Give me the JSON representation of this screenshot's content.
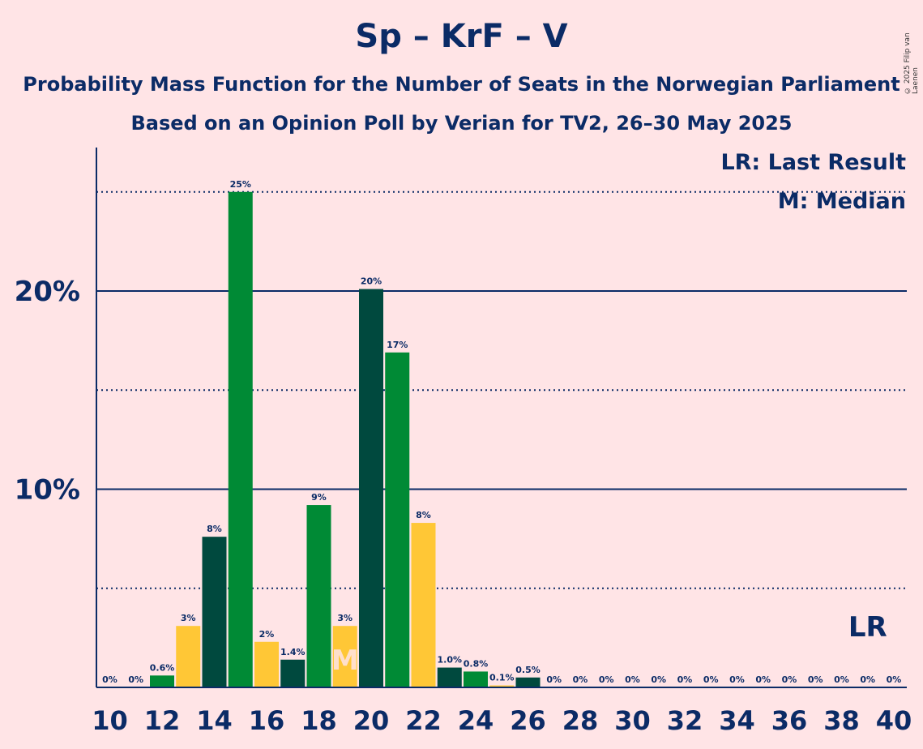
{
  "title": "Sp – KrF – V",
  "subtitle1": "Probability Mass Function for the Number of Seats in the Norwegian Parliament",
  "subtitle2": "Based on an Opinion Poll by Verian for TV2, 26–30 May 2025",
  "copyright": "© 2025 Filip van Laenen",
  "legend": {
    "lr": "LR: Last Result",
    "m": "M: Median"
  },
  "lr_label": "LR",
  "median_label": "M",
  "colors": {
    "background": "#FFE4E6",
    "dark_green": "#00493E",
    "green": "#008A35",
    "yellow": "#FFC736",
    "text": "#0B2B66"
  },
  "chart_data": {
    "type": "bar",
    "x": [
      10,
      11,
      12,
      13,
      14,
      15,
      16,
      17,
      18,
      19,
      20,
      21,
      22,
      23,
      24,
      25,
      26,
      27,
      28,
      29,
      30,
      31,
      32,
      33,
      34,
      35,
      36,
      37,
      38,
      39,
      40
    ],
    "values": [
      0,
      0,
      0.6,
      3.1,
      7.6,
      25.0,
      2.3,
      1.4,
      9.2,
      3.1,
      20.1,
      16.9,
      8.3,
      1.0,
      0.8,
      0.1,
      0.5,
      0,
      0,
      0,
      0,
      0,
      0,
      0,
      0,
      0,
      0,
      0,
      0,
      0,
      0
    ],
    "labels": [
      "0%",
      "0%",
      "0.6%",
      "3%",
      "8%",
      "25%",
      "2%",
      "1.4%",
      "9%",
      "3%",
      "20%",
      "17%",
      "8%",
      "1.0%",
      "0.8%",
      "0.1%",
      "0.5%",
      "0%",
      "0%",
      "0%",
      "0%",
      "0%",
      "0%",
      "0%",
      "0%",
      "0%",
      "0%",
      "0%",
      "0%",
      "0%",
      "0%"
    ],
    "bar_colors": [
      "dark_green",
      "green",
      "green",
      "yellow",
      "dark_green",
      "green",
      "yellow",
      "dark_green",
      "green",
      "yellow",
      "dark_green",
      "green",
      "yellow",
      "dark_green",
      "green",
      "yellow",
      "dark_green",
      "green",
      "yellow",
      "dark_green",
      "green",
      "yellow",
      "dark_green",
      "green",
      "yellow",
      "dark_green",
      "green",
      "yellow",
      "dark_green",
      "green",
      "yellow"
    ],
    "x_tick_labels": [
      "10",
      "12",
      "14",
      "16",
      "18",
      "20",
      "22",
      "24",
      "26",
      "28",
      "30",
      "32",
      "34",
      "36",
      "38",
      "40"
    ],
    "y_tick_labels": [
      "10%",
      "20%"
    ],
    "ylim": [
      0,
      27
    ],
    "gridlines": {
      "solid": [
        10,
        20
      ],
      "dotted": [
        5,
        15,
        25
      ]
    },
    "median": 19,
    "last_result": 39
  }
}
